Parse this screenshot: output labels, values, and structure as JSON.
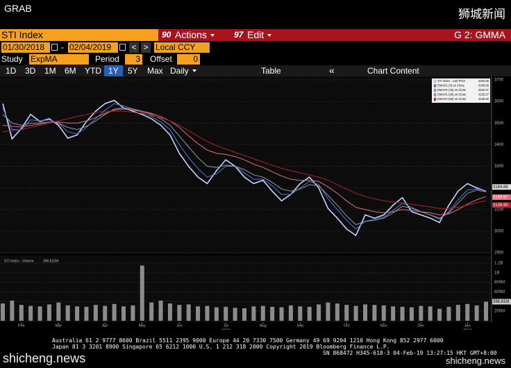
{
  "header": {
    "left": "GRAB",
    "right": "狮城新闻"
  },
  "toolbar": {
    "security": "STI Index",
    "actions_code": "90",
    "actions": "Actions",
    "edit_code": "97",
    "edit": "Edit",
    "panel": "G 2: GMMA",
    "start_date": "01/30/2018",
    "date_sep": "-",
    "end_date": "02/04/2019",
    "prev": "<",
    "next": ">",
    "currency": "Local CCY",
    "study_label": "Study",
    "study": "ExpMA",
    "period_label": "Period",
    "period": "3",
    "offset_label": "Offset",
    "offset": "0",
    "ranges": [
      "1D",
      "3D",
      "1M",
      "6M",
      "YTD",
      "1Y",
      "5Y",
      "Max"
    ],
    "active_range": "1Y",
    "interval": "Daily",
    "table": "Table",
    "collapse": "«",
    "chart_content": "Chart Content"
  },
  "chart_data": {
    "type": "line",
    "categories": [
      null,
      null,
      "Feb",
      null,
      null,
      null,
      "Mar",
      null,
      null,
      null,
      null,
      "Apr",
      null,
      null,
      null,
      "May",
      null,
      null,
      null,
      "Jun",
      null,
      null,
      null,
      null,
      "Jul",
      null,
      null,
      null,
      "Aug",
      null,
      null,
      null,
      "Sep",
      null,
      null,
      null,
      null,
      "Oct",
      null,
      null,
      null,
      "Nov",
      null,
      null,
      null,
      "Dec",
      null,
      null,
      null,
      null,
      "Jan",
      null,
      null
    ],
    "year_labels": [
      "2018",
      "2019"
    ],
    "ylim": [
      2900,
      3700
    ],
    "yticks": [
      2900,
      3000,
      3100,
      3200,
      3300,
      3400,
      3500,
      3600,
      3700
    ],
    "grid": true,
    "series": [
      {
        "name": "STI Index - Last Price",
        "last_label": "3184.66",
        "color": "#c9d6ff",
        "values": [
          3590,
          3427,
          3475,
          3540,
          3507,
          3520,
          3490,
          3430,
          3445,
          3507,
          3555,
          3590,
          3605,
          3570,
          3555,
          3540,
          3520,
          3490,
          3445,
          3360,
          3300,
          3250,
          3220,
          3280,
          3330,
          3300,
          3250,
          3220,
          3235,
          3185,
          3140,
          3170,
          3220,
          3250,
          3200,
          3105,
          3060,
          3010,
          2980,
          3075,
          3060,
          3075,
          3120,
          3155,
          3090,
          3075,
          3060,
          3040,
          3120,
          3185,
          3220,
          3200,
          3185
        ]
      },
      {
        "name": "EMAVG (3) on Close",
        "last_label": "3186.56",
        "color": "#3f7fe0",
        "values": [
          3570,
          3470,
          3470,
          3515,
          3510,
          3515,
          3500,
          3460,
          3450,
          3480,
          3520,
          3560,
          3590,
          3580,
          3565,
          3550,
          3530,
          3505,
          3470,
          3400,
          3340,
          3290,
          3250,
          3265,
          3300,
          3300,
          3270,
          3240,
          3240,
          3210,
          3170,
          3170,
          3200,
          3230,
          3215,
          3150,
          3100,
          3050,
          3010,
          3045,
          3055,
          3065,
          3095,
          3130,
          3110,
          3090,
          3075,
          3055,
          3090,
          3145,
          3190,
          3195,
          3187
        ]
      },
      {
        "name": "EMAVG (15) on Close",
        "last_label": "3182.07",
        "color": "#9a9a9a",
        "values": [
          3540,
          3500,
          3490,
          3500,
          3500,
          3505,
          3500,
          3480,
          3470,
          3485,
          3510,
          3540,
          3565,
          3570,
          3565,
          3555,
          3540,
          3520,
          3490,
          3440,
          3390,
          3340,
          3300,
          3295,
          3305,
          3300,
          3285,
          3260,
          3250,
          3225,
          3195,
          3185,
          3195,
          3215,
          3210,
          3165,
          3120,
          3070,
          3030,
          3045,
          3050,
          3060,
          3085,
          3115,
          3105,
          3090,
          3075,
          3060,
          3085,
          3130,
          3175,
          3190,
          3182
        ]
      },
      {
        "name": "EMAVG (30) on Close",
        "last_label": "3159.57",
        "color": "#e0707e",
        "values": [
          3490,
          3485,
          3482,
          3490,
          3495,
          3505,
          3505,
          3500,
          3500,
          3510,
          3525,
          3545,
          3560,
          3565,
          3560,
          3555,
          3545,
          3530,
          3510,
          3480,
          3440,
          3405,
          3375,
          3360,
          3355,
          3345,
          3330,
          3310,
          3295,
          3275,
          3255,
          3240,
          3235,
          3235,
          3230,
          3205,
          3175,
          3140,
          3110,
          3100,
          3090,
          3085,
          3090,
          3100,
          3095,
          3090,
          3085,
          3075,
          3080,
          3100,
          3125,
          3145,
          3160
        ]
      },
      {
        "name": "EMAVG (60) on Close",
        "last_label": "3139.90",
        "color": "#b3202c",
        "values": [
          3460,
          3465,
          3470,
          3480,
          3490,
          3500,
          3510,
          3520,
          3530,
          3540,
          3550,
          3555,
          3555,
          3555,
          3550,
          3545,
          3535,
          3525,
          3510,
          3490,
          3465,
          3440,
          3415,
          3395,
          3380,
          3365,
          3350,
          3335,
          3320,
          3305,
          3290,
          3280,
          3270,
          3260,
          3250,
          3235,
          3215,
          3195,
          3175,
          3160,
          3150,
          3140,
          3135,
          3130,
          3125,
          3118,
          3112,
          3105,
          3105,
          3110,
          3120,
          3132,
          3140
        ]
      }
    ],
    "volume": {
      "name": "STI Index - Volume",
      "last_label": "396.812M",
      "tag_label": "396.81M",
      "color": "#8c8c8c",
      "ylim": [
        0,
        1300
      ],
      "yticks": [
        {
          "value": 200,
          "label": "200M"
        },
        {
          "value": 400,
          "label": "400M"
        },
        {
          "value": 600,
          "label": "600M"
        },
        {
          "value": 800,
          "label": "800M"
        },
        {
          "value": 1000,
          "label": "1B"
        },
        {
          "value": 1200,
          "label": "1.2B"
        }
      ],
      "values": [
        360,
        420,
        330,
        310,
        300,
        340,
        380,
        320,
        300,
        290,
        330,
        310,
        350,
        300,
        320,
        1150,
        380,
        420,
        360,
        330,
        340,
        300,
        310,
        280,
        290,
        270,
        260,
        300,
        310,
        290,
        280,
        320,
        300,
        290,
        340,
        380,
        360,
        330,
        310,
        340,
        330,
        320,
        300,
        290,
        280,
        310,
        300,
        250,
        290,
        330,
        350,
        320,
        397
      ]
    }
  },
  "footer": {
    "line1": "Australia 61 2 9777 8600 Brazil 5511 2395 9000 Europe 44 20 7330 7500 Germany 49 69 9204 1210 Hong Kong 852 2977 6000",
    "line2": "Japan 81 3 3201 8900      Singapore 65 6212 1000      U.S. 1 212 318 2000      Copyright 2019 Bloomberg Finance L.P.",
    "line3": "SN 868472 H345-618-3 04-Feb-19 13:27:15 HKT  GMT+8:00",
    "watermark_left": "shicheng.news",
    "watermark_right": "shicheng.news"
  }
}
